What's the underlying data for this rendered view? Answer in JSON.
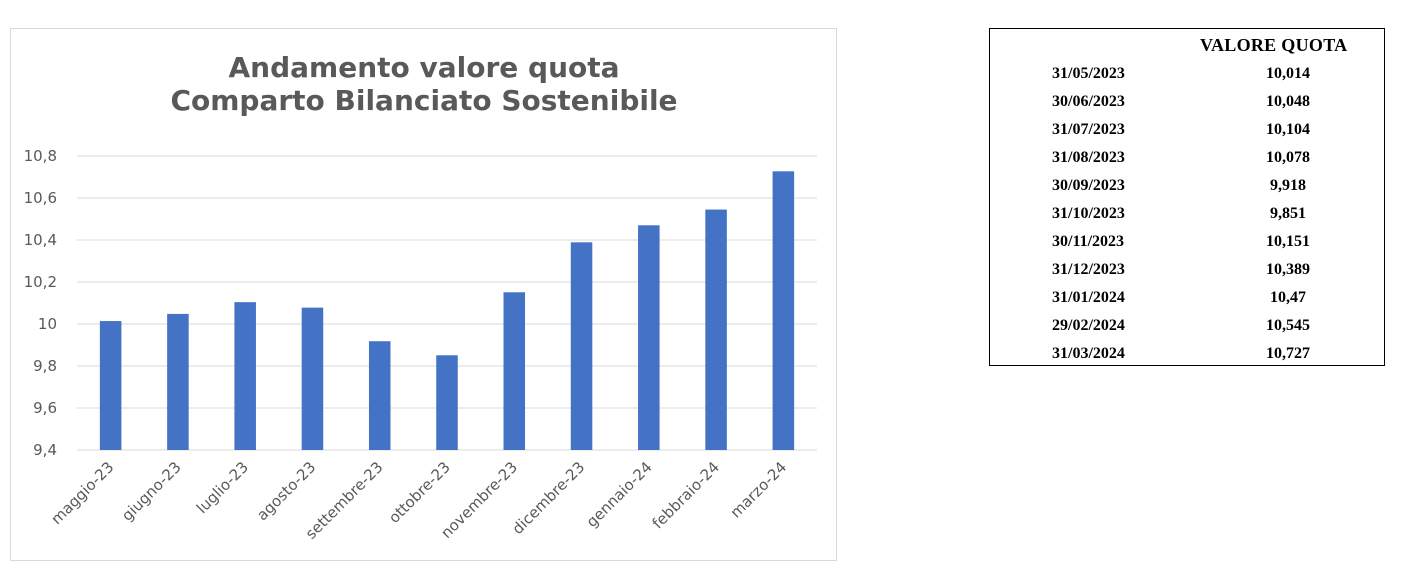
{
  "chart_data": {
    "type": "bar",
    "title": [
      "Andamento valore quota",
      "Comparto Bilanciato Sostenibile"
    ],
    "categories": [
      "maggio-23",
      "giugno-23",
      "luglio-23",
      "agosto-23",
      "settembre-23",
      "ottobre-23",
      "novembre-23",
      "dicembre-23",
      "gennaio-24",
      "febbraio-24",
      "marzo-24"
    ],
    "values": [
      10.014,
      10.048,
      10.104,
      10.078,
      9.918,
      9.851,
      10.151,
      10.389,
      10.47,
      10.545,
      10.727
    ],
    "ylim": [
      9.4,
      10.8
    ],
    "y_ticks": [
      "9,4",
      "9,6",
      "9,8",
      "10",
      "10,2",
      "10,4",
      "10,6",
      "10,8"
    ],
    "y_tick_values": [
      9.4,
      9.6,
      9.8,
      10.0,
      10.2,
      10.4,
      10.6,
      10.8
    ],
    "grid": true,
    "bar_color": "#4472c4",
    "xlabel": "",
    "ylabel": ""
  },
  "table": {
    "header": "VALORE QUOTA",
    "rows": [
      {
        "date": "31/05/2023",
        "value": "10,014"
      },
      {
        "date": "30/06/2023",
        "value": "10,048"
      },
      {
        "date": "31/07/2023",
        "value": "10,104"
      },
      {
        "date": "31/08/2023",
        "value": "10,078"
      },
      {
        "date": "30/09/2023",
        "value": "9,918"
      },
      {
        "date": "31/10/2023",
        "value": "9,851"
      },
      {
        "date": "30/11/2023",
        "value": "10,151"
      },
      {
        "date": "31/12/2023",
        "value": "10,389"
      },
      {
        "date": "31/01/2024",
        "value": "10,47"
      },
      {
        "date": "29/02/2024",
        "value": "10,545"
      },
      {
        "date": "31/03/2024",
        "value": "10,727"
      }
    ]
  }
}
